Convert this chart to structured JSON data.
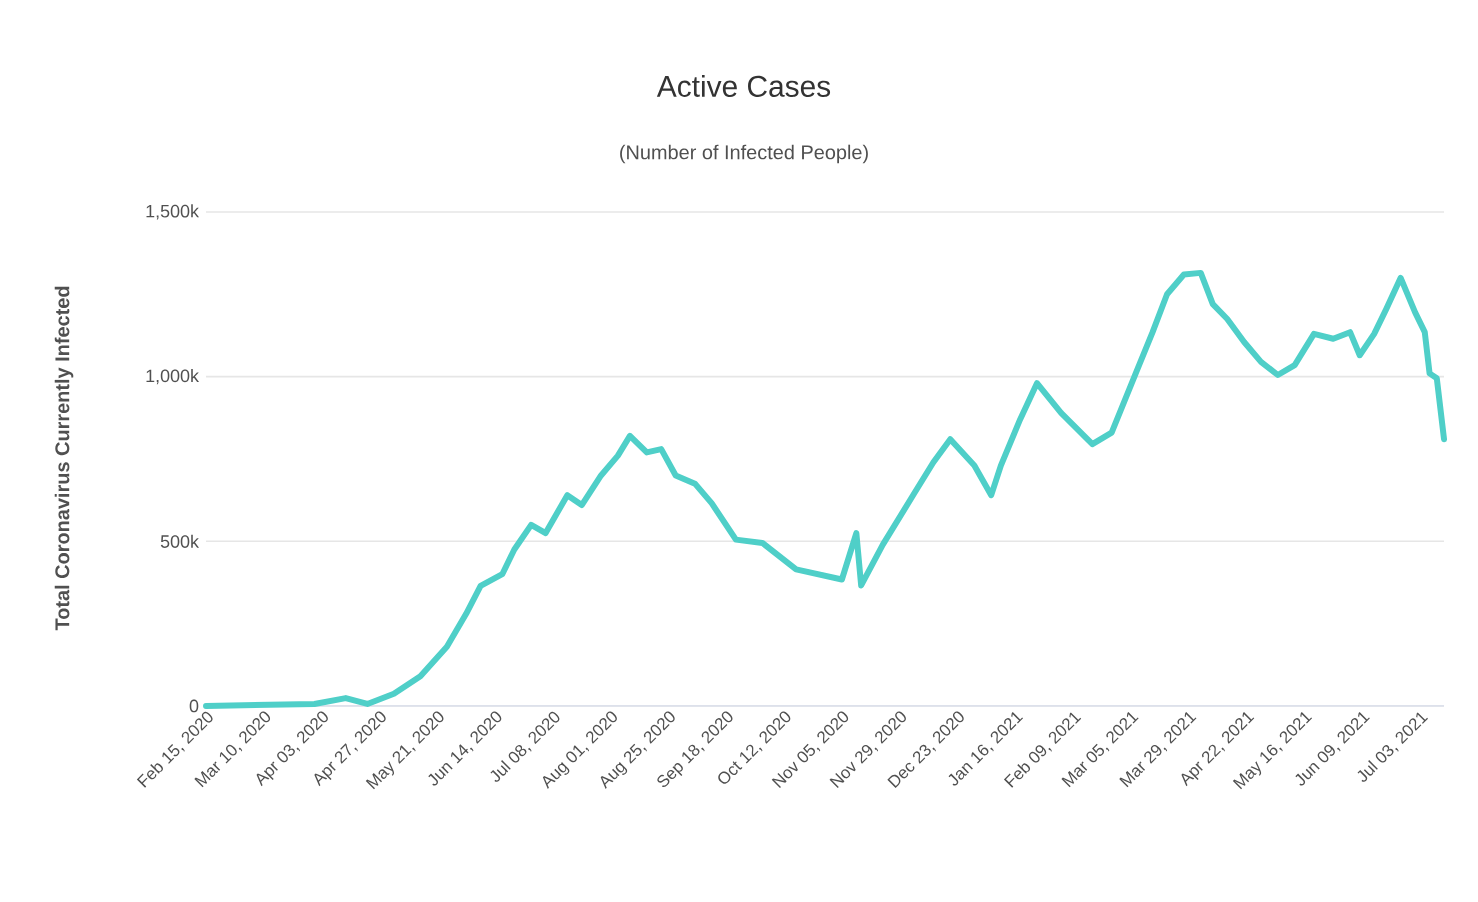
{
  "chart_data": {
    "type": "line",
    "title": "Active Cases",
    "subtitle": "(Number of Infected People)",
    "ylabel": "Total Coronavirus Currently Infected",
    "x": [
      "2020-02-15",
      "2020-03-31",
      "2020-04-13",
      "2020-04-22",
      "2020-05-03",
      "2020-05-14",
      "2020-05-25",
      "2020-06-02",
      "2020-06-08",
      "2020-06-17",
      "2020-06-22",
      "2020-06-29",
      "2020-07-05",
      "2020-07-14",
      "2020-07-20",
      "2020-07-28",
      "2020-08-04",
      "2020-08-09",
      "2020-08-16",
      "2020-08-22",
      "2020-08-28",
      "2020-09-05",
      "2020-09-12",
      "2020-09-22",
      "2020-10-03",
      "2020-10-17",
      "2020-11-05",
      "2020-11-11",
      "2020-11-13",
      "2020-11-22",
      "2020-12-05",
      "2020-12-13",
      "2020-12-20",
      "2020-12-30",
      "2021-01-06",
      "2021-01-10",
      "2021-01-18",
      "2021-01-25",
      "2021-02-04",
      "2021-02-17",
      "2021-02-25",
      "2021-03-07",
      "2021-03-14",
      "2021-03-20",
      "2021-03-27",
      "2021-04-03",
      "2021-04-08",
      "2021-04-14",
      "2021-04-21",
      "2021-04-28",
      "2021-05-05",
      "2021-05-12",
      "2021-05-20",
      "2021-05-28",
      "2021-06-04",
      "2021-06-08",
      "2021-06-14",
      "2021-06-19",
      "2021-06-25",
      "2021-07-01",
      "2021-07-05",
      "2021-07-07",
      "2021-07-10",
      "2021-07-13"
    ],
    "series": [
      {
        "color": "#4fcfc8",
        "values": [
          0,
          6000,
          24000,
          6000,
          37000,
          90000,
          180000,
          280000,
          365000,
          400000,
          475000,
          550000,
          525000,
          640000,
          610000,
          700000,
          760000,
          820000,
          770000,
          780000,
          700000,
          675000,
          615000,
          505000,
          495000,
          415000,
          384000,
          525000,
          366000,
          490000,
          645000,
          740000,
          810000,
          730000,
          640000,
          730000,
          870000,
          980000,
          890000,
          795000,
          830000,
          1010000,
          1135000,
          1250000,
          1310000,
          1315000,
          1220000,
          1175000,
          1105000,
          1045000,
          1005000,
          1035000,
          1130000,
          1115000,
          1135000,
          1065000,
          1130000,
          1205000,
          1300000,
          1195000,
          1135000,
          1010000,
          995000,
          810000
        ]
      }
    ],
    "xlim": [
      "2020-02-15",
      "2021-07-13"
    ],
    "xticks": [
      {
        "value": "2020-02-15",
        "label": "Feb 15, 2020"
      },
      {
        "value": "2020-03-10",
        "label": "Mar 10, 2020"
      },
      {
        "value": "2020-04-03",
        "label": "Apr 03, 2020"
      },
      {
        "value": "2020-04-27",
        "label": "Apr 27, 2020"
      },
      {
        "value": "2020-05-21",
        "label": "May 21, 2020"
      },
      {
        "value": "2020-06-14",
        "label": "Jun 14, 2020"
      },
      {
        "value": "2020-07-08",
        "label": "Jul 08, 2020"
      },
      {
        "value": "2020-08-01",
        "label": "Aug 01, 2020"
      },
      {
        "value": "2020-08-25",
        "label": "Aug 25, 2020"
      },
      {
        "value": "2020-09-18",
        "label": "Sep 18, 2020"
      },
      {
        "value": "2020-10-12",
        "label": "Oct 12, 2020"
      },
      {
        "value": "2020-11-05",
        "label": "Nov 05, 2020"
      },
      {
        "value": "2020-11-29",
        "label": "Nov 29, 2020"
      },
      {
        "value": "2020-12-23",
        "label": "Dec 23, 2020"
      },
      {
        "value": "2021-01-16",
        "label": "Jan 16, 2021"
      },
      {
        "value": "2021-02-09",
        "label": "Feb 09, 2021"
      },
      {
        "value": "2021-03-05",
        "label": "Mar 05, 2021"
      },
      {
        "value": "2021-03-29",
        "label": "Mar 29, 2021"
      },
      {
        "value": "2021-04-22",
        "label": "Apr 22, 2021"
      },
      {
        "value": "2021-05-16",
        "label": "May 16, 2021"
      },
      {
        "value": "2021-06-09",
        "label": "Jun 09, 2021"
      },
      {
        "value": "2021-07-03",
        "label": "Jul 03, 2021"
      }
    ],
    "ylim": [
      0,
      1500000
    ],
    "yticks": [
      {
        "value": 0,
        "label": "0"
      },
      {
        "value": 500000,
        "label": "500k"
      },
      {
        "value": 1000000,
        "label": "1,000k"
      },
      {
        "value": 1500000,
        "label": "1,500k"
      }
    ],
    "grid": "y",
    "marker": "none",
    "line_style": "solid"
  }
}
